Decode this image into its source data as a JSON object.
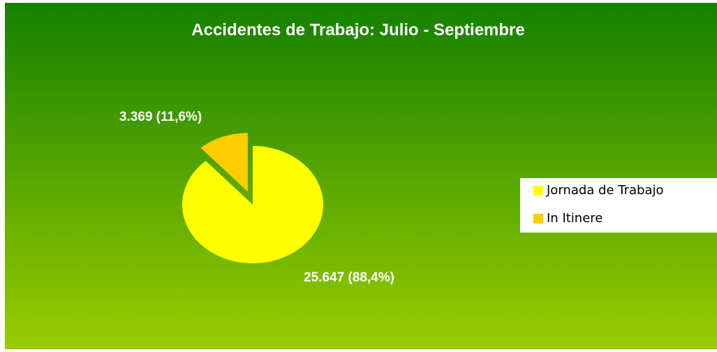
{
  "chart_data": {
    "type": "pie",
    "title": "Accidentes de Trabajo: Julio - Septiembre",
    "categories": [
      "Jornada de Trabajo",
      "In Itinere"
    ],
    "values": [
      25647,
      3369
    ],
    "value_labels": [
      "25.647 (88,4%)",
      "3.369 (11,6%)"
    ],
    "colors": [
      "#ffff00",
      "#ffcc00"
    ],
    "exploded": [
      false,
      true
    ],
    "legend": "right"
  }
}
